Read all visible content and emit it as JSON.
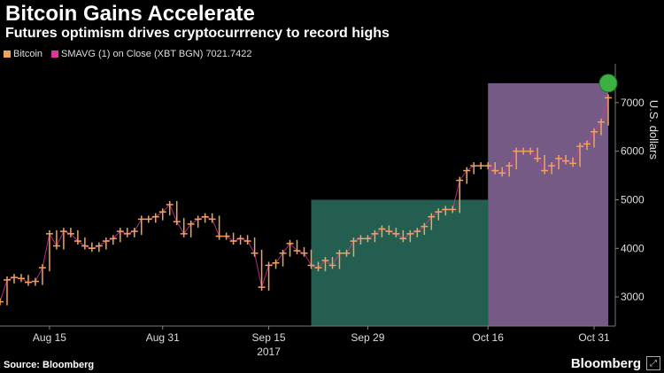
{
  "title": "Bitcoin Gains Accelerate",
  "subtitle": "Futures optimism drives cryptocurrrency to record highs",
  "legend": {
    "item1": "Bitcoin",
    "item2": "SMAVG (1) on Close (XBT BGN) 7021.7422",
    "color1": "#f2a25a",
    "color2": "#e0359b"
  },
  "source": "Source: Bloomberg",
  "brand": "Bloomberg",
  "expand_icon": "expand-icon",
  "chart_data": {
    "type": "line",
    "title": "Bitcoin Gains Accelerate",
    "subtitle": "Futures optimism drives cryptocurrrency to record highs",
    "xlabel": "2017",
    "ylabel": "U.S. dollars",
    "ylim": [
      2400,
      7800
    ],
    "y_ticks": [
      3000,
      4000,
      5000,
      6000,
      7000
    ],
    "x_ticks": [
      {
        "date": "2017-08-15",
        "label": "Aug 15"
      },
      {
        "date": "2017-08-31",
        "label": "Aug 31"
      },
      {
        "date": "2017-09-15",
        "label": "Sep 15"
      },
      {
        "date": "2017-09-29",
        "label": "Sep 29"
      },
      {
        "date": "2017-10-16",
        "label": "Oct 16"
      },
      {
        "date": "2017-10-31",
        "label": "Oct 31"
      }
    ],
    "x_range": [
      "2017-08-08",
      "2017-11-03"
    ],
    "year_label": "2017",
    "grid": false,
    "legend_position": "top-left",
    "shaded_regions": [
      {
        "start": "2017-09-21",
        "end": "2017-10-16",
        "ymin": 2400,
        "ymax": 5000,
        "color": "#2a6e5f"
      },
      {
        "start": "2017-10-16",
        "end": "2017-11-02",
        "ymin": 2400,
        "ymax": 7400,
        "color": "#8a6a9e"
      }
    ],
    "marker": {
      "date": "2017-11-02",
      "value": 7400,
      "color": "#3cb043"
    },
    "series": [
      {
        "name": "Bitcoin",
        "color": "#f2a25a",
        "x": [
          "2017-08-08",
          "2017-08-09",
          "2017-08-10",
          "2017-08-11",
          "2017-08-12",
          "2017-08-13",
          "2017-08-14",
          "2017-08-15",
          "2017-08-16",
          "2017-08-17",
          "2017-08-18",
          "2017-08-19",
          "2017-08-20",
          "2017-08-21",
          "2017-08-22",
          "2017-08-23",
          "2017-08-24",
          "2017-08-25",
          "2017-08-26",
          "2017-08-27",
          "2017-08-28",
          "2017-08-29",
          "2017-08-30",
          "2017-08-31",
          "2017-09-01",
          "2017-09-02",
          "2017-09-03",
          "2017-09-04",
          "2017-09-05",
          "2017-09-06",
          "2017-09-07",
          "2017-09-08",
          "2017-09-09",
          "2017-09-10",
          "2017-09-11",
          "2017-09-12",
          "2017-09-13",
          "2017-09-14",
          "2017-09-15",
          "2017-09-16",
          "2017-09-17",
          "2017-09-18",
          "2017-09-19",
          "2017-09-20",
          "2017-09-21",
          "2017-09-22",
          "2017-09-23",
          "2017-09-24",
          "2017-09-25",
          "2017-09-26",
          "2017-09-27",
          "2017-09-28",
          "2017-09-29",
          "2017-09-30",
          "2017-10-01",
          "2017-10-02",
          "2017-10-03",
          "2017-10-04",
          "2017-10-05",
          "2017-10-06",
          "2017-10-07",
          "2017-10-08",
          "2017-10-09",
          "2017-10-10",
          "2017-10-11",
          "2017-10-12",
          "2017-10-13",
          "2017-10-14",
          "2017-10-15",
          "2017-10-16",
          "2017-10-17",
          "2017-10-18",
          "2017-10-19",
          "2017-10-20",
          "2017-10-21",
          "2017-10-22",
          "2017-10-23",
          "2017-10-24",
          "2017-10-25",
          "2017-10-26",
          "2017-10-27",
          "2017-10-28",
          "2017-10-29",
          "2017-10-30",
          "2017-10-31",
          "2017-11-01",
          "2017-11-02"
        ],
        "values": [
          2900,
          3350,
          3400,
          3380,
          3300,
          3320,
          3600,
          4300,
          4050,
          4350,
          4300,
          4150,
          4050,
          4000,
          4050,
          4150,
          4200,
          4350,
          4300,
          4350,
          4600,
          4600,
          4650,
          4750,
          4900,
          4550,
          4300,
          4500,
          4600,
          4650,
          4600,
          4250,
          4250,
          4150,
          4200,
          4150,
          3900,
          3200,
          3650,
          3700,
          3900,
          4100,
          3950,
          3900,
          3650,
          3600,
          3750,
          3650,
          3900,
          3900,
          4150,
          4200,
          4200,
          4300,
          4400,
          4350,
          4300,
          4200,
          4300,
          4350,
          4450,
          4650,
          4750,
          4800,
          4800,
          5400,
          5600,
          5700,
          5700,
          5700,
          5600,
          5550,
          5700,
          6000,
          6000,
          6000,
          5850,
          5600,
          5700,
          5850,
          5800,
          5750,
          6100,
          6150,
          6400,
          6600,
          7100
        ]
      }
    ]
  }
}
